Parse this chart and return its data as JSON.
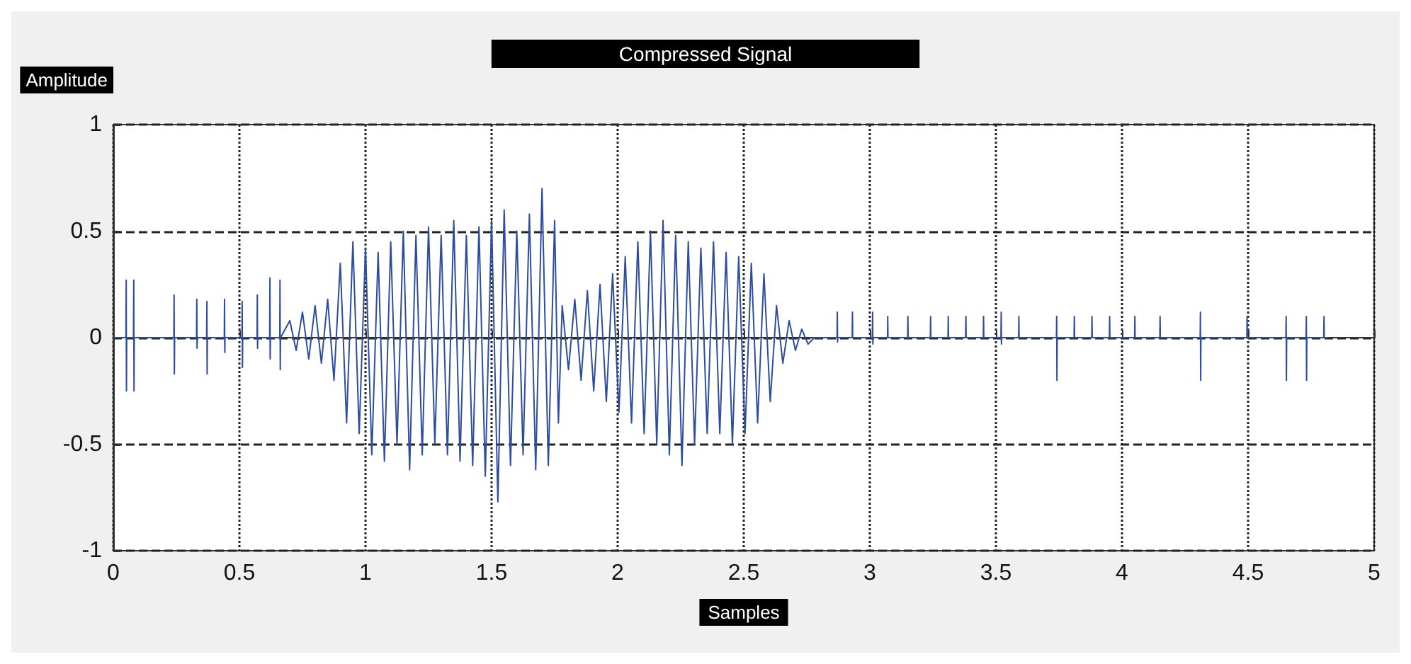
{
  "chart_data": {
    "type": "line",
    "title": "Compressed Signal",
    "xlabel": "Samples",
    "ylabel": "Amplitude",
    "xlim": [
      0,
      5
    ],
    "xticks": [
      0,
      0.5,
      1,
      1.5,
      2,
      2.5,
      3,
      3.5,
      4,
      4.5,
      5
    ],
    "ylim": [
      -1,
      1
    ],
    "yticks": [
      -1,
      -0.5,
      0,
      0.5,
      1
    ],
    "grid": true,
    "marker": "none",
    "line_style": "solid",
    "series": [
      {
        "color": "#2e4da0",
        "x": [
          0,
          0.05,
          0.051,
          0.052,
          0.053,
          0.08,
          0.081,
          0.082,
          0.083,
          0.24,
          0.241,
          0.242,
          0.243,
          0.33,
          0.331,
          0.332,
          0.333,
          0.37,
          0.371,
          0.372,
          0.373,
          0.44,
          0.441,
          0.442,
          0.443,
          0.51,
          0.511,
          0.512,
          0.513,
          0.57,
          0.571,
          0.572,
          0.573,
          0.62,
          0.621,
          0.622,
          0.623,
          0.66,
          0.661,
          0.662,
          0.663,
          0.7,
          0.725,
          0.75,
          0.775,
          0.8,
          0.825,
          0.85,
          0.875,
          0.9,
          0.925,
          0.95,
          0.975,
          1,
          1.025,
          1.05,
          1.075,
          1.1,
          1.125,
          1.15,
          1.175,
          1.2,
          1.225,
          1.25,
          1.275,
          1.3,
          1.325,
          1.35,
          1.375,
          1.4,
          1.425,
          1.45,
          1.475,
          1.5,
          1.525,
          1.55,
          1.575,
          1.6,
          1.625,
          1.65,
          1.675,
          1.7,
          1.725,
          1.75,
          1.765,
          1.78,
          1.805,
          1.83,
          1.855,
          1.88,
          1.905,
          1.93,
          1.955,
          1.98,
          2.005,
          2.03,
          2.055,
          2.08,
          2.105,
          2.13,
          2.155,
          2.18,
          2.205,
          2.23,
          2.255,
          2.28,
          2.305,
          2.33,
          2.355,
          2.38,
          2.405,
          2.43,
          2.455,
          2.48,
          2.505,
          2.53,
          2.555,
          2.58,
          2.605,
          2.63,
          2.655,
          2.68,
          2.705,
          2.73,
          2.755,
          2.78,
          2.87,
          2.871,
          2.872,
          2.873,
          2.93,
          2.931,
          2.932,
          3.01,
          3.011,
          3.012,
          3.013,
          3.07,
          3.071,
          3.072,
          3.15,
          3.151,
          3.152,
          3.24,
          3.241,
          3.242,
          3.31,
          3.311,
          3.312,
          3.38,
          3.381,
          3.382,
          3.45,
          3.451,
          3.452,
          3.52,
          3.521,
          3.522,
          3.523,
          3.59,
          3.591,
          3.592,
          3.74,
          3.741,
          3.742,
          3.743,
          3.81,
          3.811,
          3.812,
          3.88,
          3.881,
          3.882,
          3.95,
          3.951,
          3.952,
          4.05,
          4.051,
          4.052,
          4.15,
          4.151,
          4.152,
          4.31,
          4.311,
          4.312,
          4.313,
          4.495,
          4.496,
          4.497,
          4.65,
          4.651,
          4.652,
          4.653,
          4.73,
          4.731,
          4.732,
          4.733,
          4.8,
          4.801,
          4.802,
          4.82
        ],
        "values": [
          0,
          0,
          0.27,
          -0.25,
          0,
          0,
          0.27,
          -0.25,
          0,
          0,
          0.2,
          -0.17,
          0,
          0,
          0.18,
          -0.05,
          0,
          0,
          0.17,
          -0.17,
          0,
          0,
          0.18,
          -0.07,
          0,
          0,
          0.17,
          -0.14,
          0,
          0,
          0.2,
          -0.05,
          0,
          0,
          0.28,
          -0.1,
          0,
          0,
          0.27,
          -0.15,
          0,
          0.08,
          -0.06,
          0.12,
          -0.1,
          0.15,
          -0.12,
          0.18,
          -0.2,
          0.35,
          -0.4,
          0.45,
          -0.45,
          0.42,
          -0.55,
          0.4,
          -0.58,
          0.45,
          -0.5,
          0.5,
          -0.62,
          0.48,
          -0.55,
          0.52,
          -0.5,
          0.48,
          -0.55,
          0.55,
          -0.58,
          0.48,
          -0.6,
          0.52,
          -0.65,
          0.55,
          -0.77,
          0.6,
          -0.6,
          0.5,
          -0.55,
          0.58,
          -0.62,
          0.7,
          -0.6,
          0.55,
          -0.4,
          0.15,
          -0.15,
          0.18,
          -0.2,
          0.22,
          -0.25,
          0.25,
          -0.3,
          0.3,
          -0.35,
          0.38,
          -0.4,
          0.45,
          -0.45,
          0.5,
          -0.5,
          0.55,
          -0.55,
          0.48,
          -0.6,
          0.45,
          -0.5,
          0.42,
          -0.45,
          0.45,
          -0.45,
          0.4,
          -0.5,
          0.38,
          -0.45,
          0.35,
          -0.4,
          0.3,
          -0.3,
          0.15,
          -0.12,
          0.08,
          -0.06,
          0.04,
          -0.03,
          0,
          0,
          0.12,
          -0.02,
          0,
          0,
          0.12,
          0,
          0,
          0.12,
          -0.03,
          0,
          0,
          0.1,
          0,
          0,
          0.1,
          0,
          0,
          0.1,
          0,
          0,
          0.1,
          0,
          0,
          0.1,
          0,
          0,
          0.1,
          0,
          0,
          0.12,
          -0.03,
          0,
          0,
          0.1,
          0,
          0,
          0.1,
          -0.2,
          0,
          0,
          0.1,
          0,
          0,
          0.1,
          0,
          0,
          0.1,
          0,
          0,
          0.1,
          0,
          0,
          0.1,
          0,
          0,
          0.12,
          -0.2,
          0,
          0,
          0.1,
          0,
          0,
          0.1,
          -0.2,
          0,
          0,
          0.1,
          -0.2,
          0,
          0,
          0.1,
          0,
          0
        ]
      }
    ]
  }
}
